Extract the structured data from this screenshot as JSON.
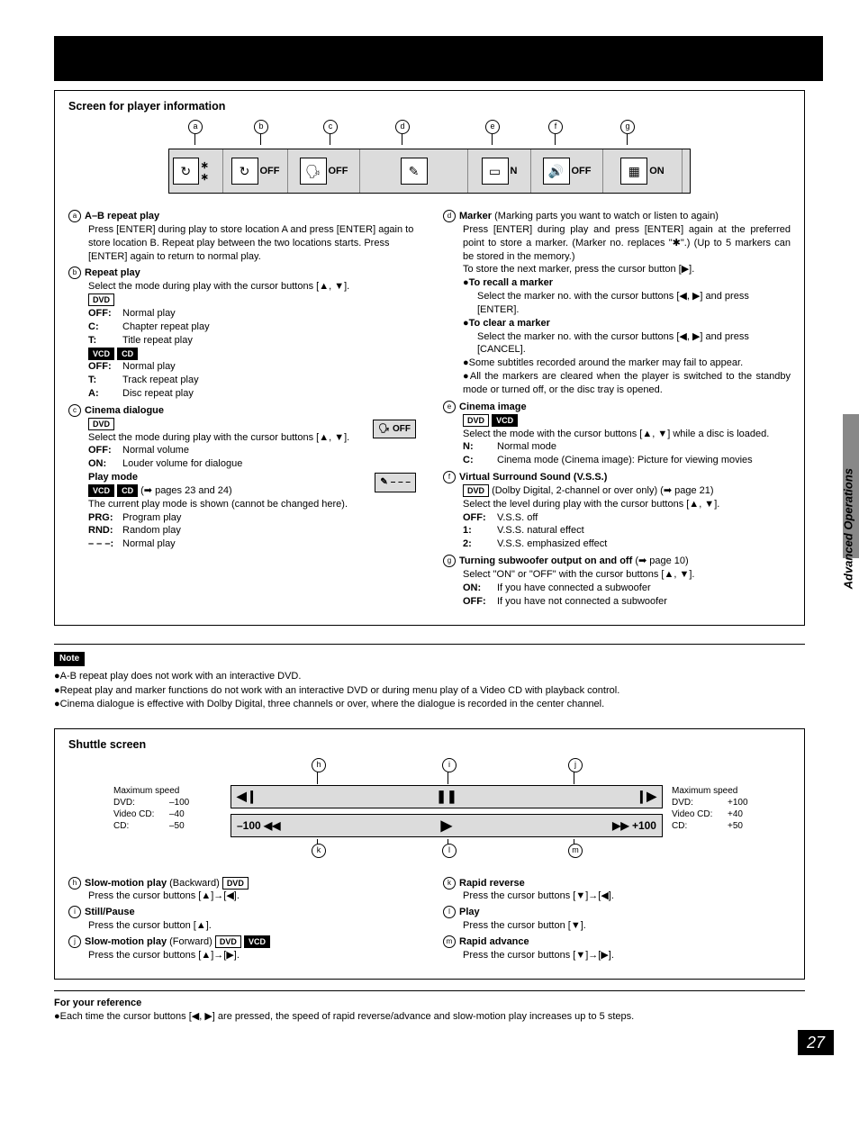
{
  "page_number": "27",
  "side_label": "Advanced Operations",
  "section1": {
    "title": "Screen for player information",
    "strip_labels": [
      "a",
      "b",
      "c",
      "d",
      "e",
      "f",
      "g"
    ],
    "strip_cells": [
      {
        "icon": "↻",
        "text": "∗ ∗"
      },
      {
        "icon": "↻",
        "text": "OFF"
      },
      {
        "icon": "🗣",
        "text": "OFF"
      },
      {
        "icon": "✎",
        "text": ""
      },
      {
        "icon": "▭",
        "text": "N"
      },
      {
        "icon": "🔊",
        "text": "OFF"
      },
      {
        "icon": "▦",
        "text": "ON"
      }
    ],
    "left_items": [
      {
        "id": "a",
        "title": "A–B repeat play",
        "body": "Press [ENTER] during play to store location A and press [ENTER] again to store location B. Repeat play between the two locations starts. Press [ENTER] again to return to normal play."
      },
      {
        "id": "b",
        "title": "Repeat play",
        "body": "Select the mode during play with the cursor buttons [▲, ▼].",
        "discs1": [
          "DVD"
        ],
        "defs1": [
          [
            "OFF:",
            "Normal play"
          ],
          [
            "C:",
            "Chapter repeat play"
          ],
          [
            "T:",
            "Title repeat play"
          ]
        ],
        "discs2": [
          "VCD",
          "CD"
        ],
        "defs2": [
          [
            "OFF:",
            "Normal play"
          ],
          [
            "T:",
            "Track repeat play"
          ],
          [
            "A:",
            "Disc repeat play"
          ]
        ]
      },
      {
        "id": "c",
        "title": "Cinema dialogue",
        "float_icon": "OFF",
        "discs": [
          "DVD"
        ],
        "body": "Select the mode during play with the cursor buttons [▲, ▼].",
        "defs": [
          [
            "OFF:",
            "Normal volume"
          ],
          [
            "ON:",
            "Louder volume for dialogue"
          ]
        ],
        "sub": {
          "title": "Play mode",
          "float_icon": "– – –",
          "discs": [
            "VCD",
            "CD"
          ],
          "ref": "(➡ pages 23 and 24)",
          "body": "The current play mode is shown (cannot be changed here).",
          "defs": [
            [
              "PRG:",
              "Program play"
            ],
            [
              "RND:",
              "Random play"
            ],
            [
              "– – –:",
              "Normal play"
            ]
          ]
        }
      }
    ],
    "right_items": [
      {
        "id": "d",
        "title": "Marker",
        "title_note": "(Marking parts you want to watch or listen to again)",
        "body": "Press [ENTER] during play and press [ENTER] again at the preferred point to store a marker. (Marker no. replaces \"✱\".) (Up to 5 markers can be stored in the memory.)",
        "body2": "To store the next marker, press the cursor button [▶].",
        "subs": [
          {
            "t": "●To recall a marker",
            "b": "Select the marker no. with the cursor buttons [◀, ▶] and press [ENTER]."
          },
          {
            "t": "●To clear a marker",
            "b": "Select the marker no. with the cursor buttons [◀, ▶] and press [CANCEL]."
          }
        ],
        "notes": [
          "●Some subtitles recorded around the marker may fail to appear.",
          "●All the markers are cleared when the player is switched to the standby mode or turned off, or the disc tray is opened."
        ]
      },
      {
        "id": "e",
        "title": "Cinema image",
        "discs": [
          "DVD",
          "VCD"
        ],
        "body": "Select the mode with the cursor buttons [▲, ▼] while a disc is loaded.",
        "defs": [
          [
            "N:",
            "Normal mode"
          ],
          [
            "C:",
            "Cinema mode (Cinema image): Picture for viewing movies"
          ]
        ]
      },
      {
        "id": "f",
        "title": "Virtual Surround Sound (V.S.S.)",
        "discs": [
          "DVD"
        ],
        "disc_note": "(Dolby Digital, 2-channel or over only) (➡ page 21)",
        "body": "Select the level during play with the cursor buttons [▲, ▼].",
        "defs": [
          [
            "OFF:",
            "V.S.S. off"
          ],
          [
            "1:",
            "V.S.S. natural effect"
          ],
          [
            "2:",
            "V.S.S. emphasized effect"
          ]
        ]
      },
      {
        "id": "g",
        "title": "Turning subwoofer output on and off",
        "title_ref": "(➡ page 10)",
        "body": "Select \"ON\" or \"OFF\" with the cursor buttons [▲, ▼].",
        "defs": [
          [
            "ON:",
            "If you have connected a subwoofer"
          ],
          [
            "OFF:",
            "If you have not connected a subwoofer"
          ]
        ]
      }
    ]
  },
  "note": {
    "badge": "Note",
    "bullets": [
      "●A-B repeat play does not work with an interactive DVD.",
      "●Repeat play and marker functions do not work with an interactive DVD or during menu play of a Video CD with playback control.",
      "●Cinema dialogue is effective with Dolby Digital, three channels or over, where the dialogue is recorded in the center channel."
    ]
  },
  "section2": {
    "title": "Shuttle screen",
    "top_labels": [
      "h",
      "i",
      "j"
    ],
    "bot_labels": [
      "k",
      "l",
      "m"
    ],
    "left_speed": {
      "head": "Maximum speed",
      "rows": [
        [
          "DVD:",
          "–100"
        ],
        [
          "Video CD:",
          "–40"
        ],
        [
          "CD:",
          "–50"
        ]
      ]
    },
    "right_speed": {
      "head": "Maximum speed",
      "rows": [
        [
          "DVD:",
          "+100"
        ],
        [
          "Video CD:",
          "+40"
        ],
        [
          "CD:",
          "+50"
        ]
      ]
    },
    "strip1": {
      "l": "◀❙",
      "c": "❚❚",
      "r": "❙▶"
    },
    "strip2": {
      "l": "–100 ◀◀",
      "c": "▶",
      "r": "▶▶ +100"
    },
    "left_items": [
      {
        "id": "h",
        "title": "Slow-motion play",
        "title_note": "(Backward)",
        "discs": [
          "DVD"
        ],
        "body": "Press the cursor buttons [▲]→[◀]."
      },
      {
        "id": "i",
        "title": "Still/Pause",
        "body": "Press the cursor button [▲]."
      },
      {
        "id": "j",
        "title": "Slow-motion play",
        "title_note": "(Forward)",
        "discs": [
          "DVD",
          "VCD"
        ],
        "body": "Press the cursor buttons [▲]→[▶]."
      }
    ],
    "right_items": [
      {
        "id": "k",
        "title": "Rapid reverse",
        "body": "Press the cursor buttons [▼]→[◀]."
      },
      {
        "id": "l",
        "title": "Play",
        "body": "Press the cursor button [▼]."
      },
      {
        "id": "m",
        "title": "Rapid advance",
        "body": "Press the cursor buttons [▼]→[▶]."
      }
    ]
  },
  "reference": {
    "title": "For your reference",
    "body": "●Each time the cursor buttons [◀, ▶] are pressed, the speed of rapid reverse/advance and slow-motion play increases up to 5 steps."
  }
}
